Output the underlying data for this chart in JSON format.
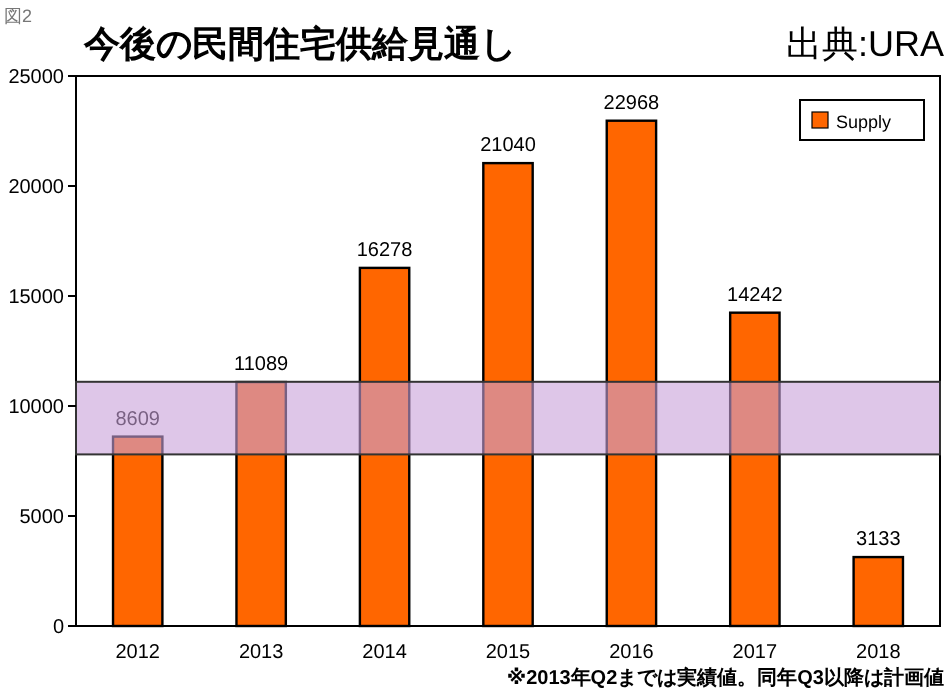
{
  "chart_data": {
    "type": "bar",
    "title": "今後の民間住宅供給見通し",
    "annotations": [
      "図2",
      "出典:URA",
      "※2013年Q2までは実績値。同年Q3以降は計画値"
    ],
    "categories": [
      "2012",
      "2013",
      "2014",
      "2015",
      "2016",
      "2017",
      "2018"
    ],
    "series": [
      {
        "name": "Supply",
        "color": "#ff6600",
        "values": [
          8609,
          11089,
          16278,
          21040,
          22968,
          14242,
          3133
        ]
      }
    ],
    "data_labels": true,
    "ylim": [
      0,
      25000
    ],
    "yticks": [
      0,
      5000,
      10000,
      15000,
      20000,
      25000
    ],
    "bands": [
      {
        "axis": "y",
        "from": 7800,
        "to": 11100,
        "color": "#c8a0d8"
      }
    ],
    "legend": "top right",
    "grid": false
  }
}
